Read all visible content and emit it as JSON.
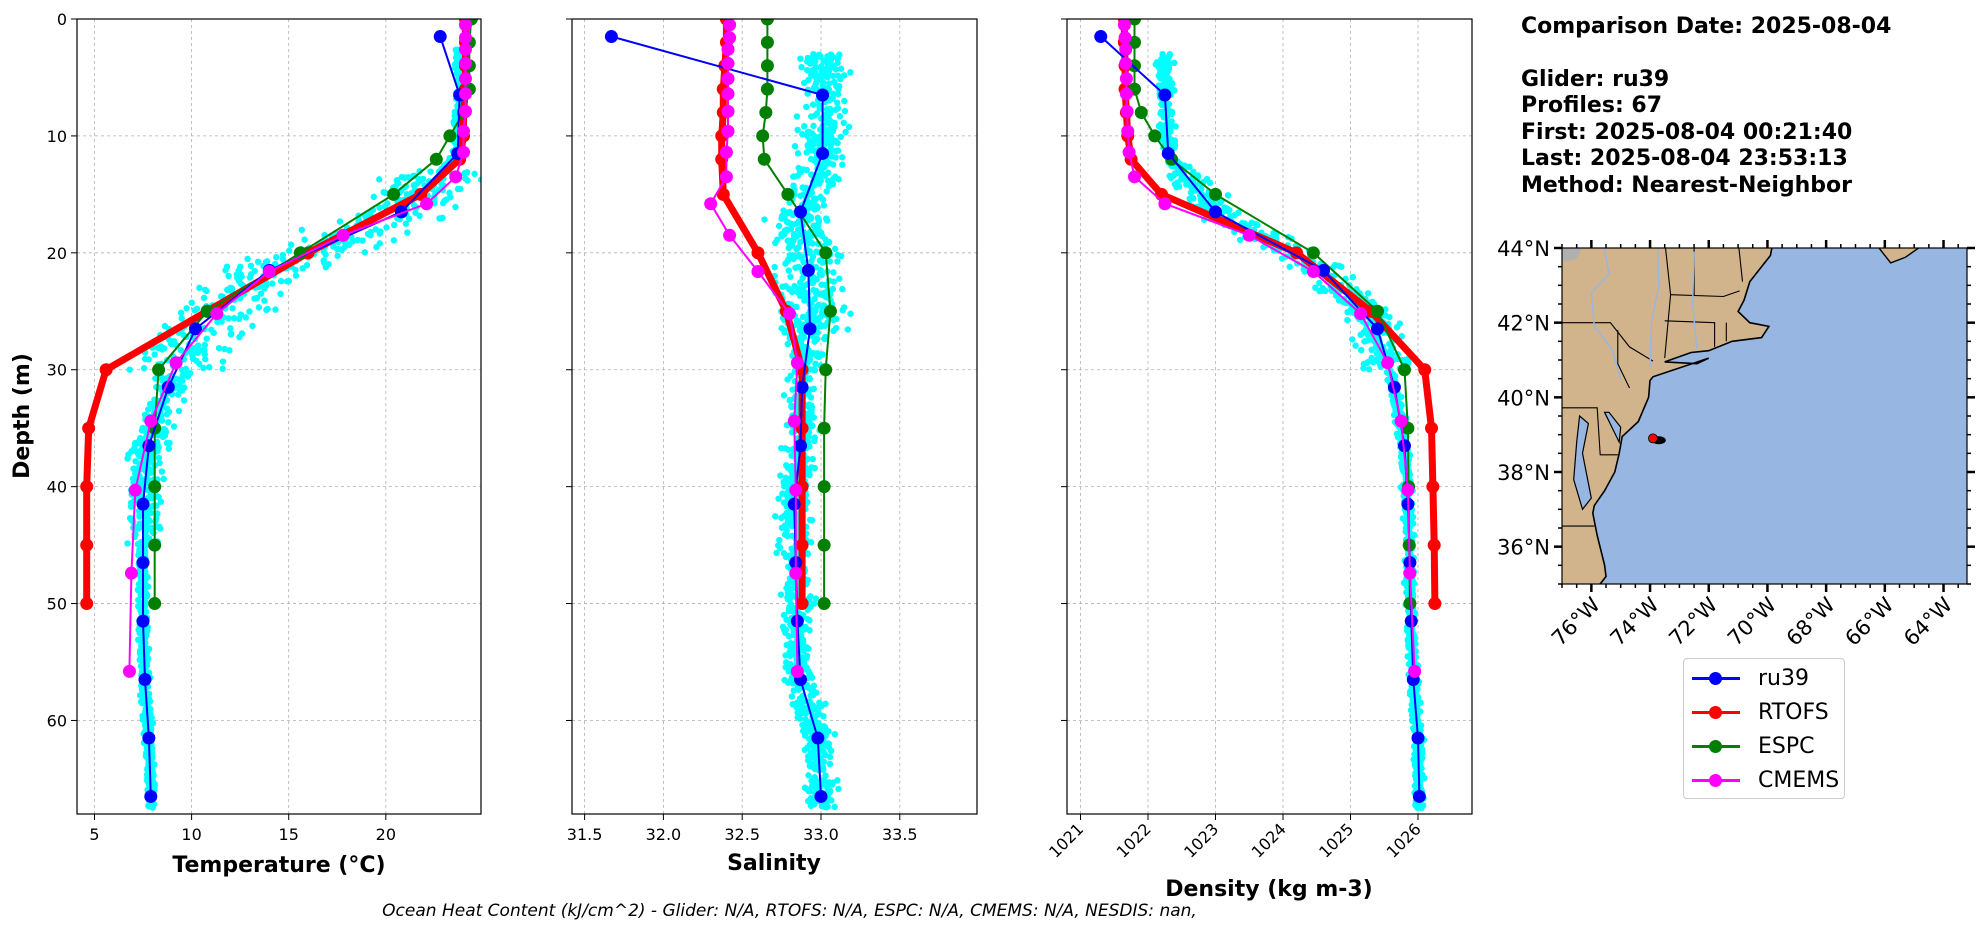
{
  "info": {
    "comparison_date": "Comparison Date: 2025-08-04",
    "glider": "Glider: ru39",
    "profiles": "Profiles: 67",
    "first": "First: 2025-08-04 00:21:40",
    "last": "Last: 2025-08-04 23:53:13",
    "method": "Method: Nearest-Neighbor"
  },
  "footnote": "Ocean Heat Content (kJ/cm^2) - Glider: N/A,  RTOFS: N/A,  ESPC: N/A,  CMEMS: N/A,  NESDIS: nan,",
  "legend": [
    {
      "name": "ru39",
      "color": "#0000ff"
    },
    {
      "name": "RTOFS",
      "color": "#ff0000"
    },
    {
      "name": "ESPC",
      "color": "#008000"
    },
    {
      "name": "CMEMS",
      "color": "#ff00ff"
    }
  ],
  "colors": {
    "glider_scatter": "#00ffff",
    "land": "#d2b48c",
    "ocean": "#97b6e1",
    "lake_river": "#97b6e1"
  },
  "chart_data": [
    {
      "type": "line",
      "title": "",
      "xlabel": "Temperature (°C)",
      "ylabel": "Depth (m)",
      "xlim": [
        4.1,
        24.9
      ],
      "ylim": [
        68,
        0
      ],
      "xticks": [
        5,
        10,
        15,
        20
      ],
      "yticks": [
        0,
        10,
        20,
        30,
        40,
        50,
        60
      ],
      "grid": true,
      "scatter": {
        "name": "glider profiles (all)",
        "color": "#00ffff",
        "note": "67 profiles; surface ~23.5-24.2 °C (0-13 m), thermocline 13-30 m spanning 7-24 °C, bottom ~7-8 °C"
      },
      "series": [
        {
          "name": "ru39",
          "depth": [
            1.5,
            6.5,
            11.5,
            16.5,
            21.5,
            26.5,
            31.5,
            36.5,
            41.5,
            46.5,
            51.5,
            56.5,
            61.5,
            66.5
          ],
          "values": [
            22.8,
            23.8,
            23.7,
            20.8,
            14.0,
            10.2,
            8.8,
            7.8,
            7.5,
            7.5,
            7.5,
            7.6,
            7.8,
            7.9
          ]
        },
        {
          "name": "RTOFS",
          "depth": [
            0,
            2,
            4,
            6,
            8,
            10,
            12,
            15,
            20,
            25,
            30,
            35,
            40,
            45,
            50
          ],
          "values": [
            24.1,
            24.1,
            24.1,
            24.1,
            24.0,
            24.0,
            23.8,
            21.8,
            16.0,
            10.8,
            5.6,
            4.7,
            4.6,
            4.6,
            4.6
          ]
        },
        {
          "name": "ESPC",
          "depth": [
            0,
            2,
            4,
            6,
            8,
            10,
            12,
            15,
            20,
            25,
            30,
            35,
            40,
            45,
            50
          ],
          "values": [
            24.4,
            24.3,
            24.3,
            24.3,
            24.0,
            23.3,
            22.6,
            20.4,
            15.6,
            10.8,
            8.3,
            8.1,
            8.1,
            8.1,
            8.1
          ]
        },
        {
          "name": "CMEMS",
          "depth": [
            0.5,
            1.6,
            2.6,
            3.8,
            5.1,
            6.4,
            7.9,
            9.6,
            11.4,
            13.5,
            15.8,
            18.5,
            21.6,
            25.2,
            29.4,
            34.4,
            40.3,
            47.4,
            55.8
          ],
          "values": [
            24.1,
            24.1,
            24.1,
            24.1,
            24.1,
            24.1,
            24.1,
            24.0,
            24.0,
            23.6,
            22.1,
            17.8,
            14.0,
            11.3,
            9.2,
            7.9,
            7.1,
            6.9,
            6.8
          ]
        }
      ]
    },
    {
      "type": "line",
      "title": "",
      "xlabel": "Salinity",
      "ylabel": "",
      "xlim": [
        31.42,
        33.99
      ],
      "ylim": [
        68,
        0
      ],
      "xticks": [
        31.5,
        32.0,
        32.5,
        33.0,
        33.5
      ],
      "xtick_labels": [
        "31.5",
        "32.0",
        "32.5",
        "33.0",
        "33.5"
      ],
      "yticks": [
        0,
        10,
        20,
        30,
        40,
        50,
        60
      ],
      "grid": true,
      "scatter": {
        "name": "glider profiles (all)",
        "color": "#00ffff",
        "note": "upper 3-17 m ~32.6-33.3; 17-28 m ~32.5-33.7; below 28 m ~32.6-33.1"
      },
      "series": [
        {
          "name": "ru39",
          "depth": [
            1.5,
            6.5,
            11.5,
            16.5,
            21.5,
            26.5,
            31.5,
            36.5,
            41.5,
            46.5,
            51.5,
            56.5,
            61.5,
            66.5
          ],
          "values": [
            31.67,
            33.01,
            33.01,
            32.87,
            32.92,
            32.93,
            32.88,
            32.87,
            32.83,
            32.84,
            32.85,
            32.87,
            32.98,
            33.0
          ]
        },
        {
          "name": "RTOFS",
          "depth": [
            0,
            2,
            4,
            6,
            8,
            10,
            12,
            15,
            20,
            25,
            30,
            35,
            40,
            45,
            50
          ],
          "values": [
            32.4,
            32.4,
            32.39,
            32.38,
            32.38,
            32.37,
            32.37,
            32.38,
            32.6,
            32.78,
            32.88,
            32.88,
            32.88,
            32.88,
            32.88
          ]
        },
        {
          "name": "ESPC",
          "depth": [
            0,
            2,
            4,
            6,
            8,
            10,
            12,
            15,
            20,
            25,
            30,
            35,
            40,
            45,
            50
          ],
          "values": [
            32.66,
            32.66,
            32.66,
            32.66,
            32.65,
            32.63,
            32.64,
            32.79,
            33.03,
            33.06,
            33.03,
            33.02,
            33.02,
            33.02,
            33.02
          ]
        },
        {
          "name": "CMEMS",
          "depth": [
            0.5,
            1.6,
            2.6,
            3.8,
            5.1,
            6.4,
            7.9,
            9.6,
            11.4,
            13.5,
            15.8,
            18.5,
            21.6,
            25.2,
            29.4,
            34.4,
            40.3,
            47.4,
            55.8
          ],
          "values": [
            32.42,
            32.42,
            32.41,
            32.41,
            32.41,
            32.41,
            32.41,
            32.41,
            32.4,
            32.4,
            32.3,
            32.42,
            32.6,
            32.8,
            32.85,
            32.83,
            32.84,
            32.84,
            32.85
          ]
        }
      ]
    },
    {
      "type": "line",
      "title": "",
      "xlabel": "Density (kg m-3)",
      "ylabel": "",
      "xlim": [
        1020.8,
        1026.8
      ],
      "ylim": [
        68,
        0
      ],
      "xticks": [
        1021,
        1022,
        1023,
        1024,
        1025,
        1026
      ],
      "yticks": [
        0,
        10,
        20,
        30,
        40,
        50,
        60
      ],
      "grid": true,
      "scatter": {
        "name": "glider profiles (all)",
        "color": "#00ffff",
        "note": "upper 3-13 m ~1022.0-1022.5; thermocline 13-30 m ~1021.8-1025.8; below 30 m ~1025.6-1026.1"
      },
      "series": [
        {
          "name": "ru39",
          "depth": [
            1.5,
            6.5,
            11.5,
            16.5,
            21.5,
            26.5,
            31.5,
            36.5,
            41.5,
            46.5,
            51.5,
            56.5,
            61.5,
            66.5
          ],
          "values": [
            1021.3,
            1022.25,
            1022.3,
            1023.0,
            1024.6,
            1025.4,
            1025.65,
            1025.8,
            1025.85,
            1025.88,
            1025.9,
            1025.93,
            1026.0,
            1026.02
          ]
        },
        {
          "name": "RTOFS",
          "depth": [
            0,
            2,
            4,
            6,
            8,
            10,
            12,
            15,
            20,
            25,
            30,
            35,
            40,
            45,
            50
          ],
          "values": [
            1021.65,
            1021.65,
            1021.66,
            1021.66,
            1021.68,
            1021.7,
            1021.75,
            1022.2,
            1024.2,
            1025.3,
            1026.1,
            1026.2,
            1026.22,
            1026.24,
            1026.25
          ]
        },
        {
          "name": "ESPC",
          "depth": [
            0,
            2,
            4,
            6,
            8,
            10,
            12,
            15,
            20,
            25,
            30,
            35,
            40,
            45,
            50
          ],
          "values": [
            1021.8,
            1021.8,
            1021.8,
            1021.8,
            1021.9,
            1022.1,
            1022.35,
            1023.0,
            1024.45,
            1025.4,
            1025.8,
            1025.85,
            1025.86,
            1025.87,
            1025.88
          ]
        },
        {
          "name": "CMEMS",
          "depth": [
            0.5,
            1.6,
            2.6,
            3.8,
            5.1,
            6.4,
            7.9,
            9.6,
            11.4,
            13.5,
            15.8,
            18.5,
            21.6,
            25.2,
            29.4,
            34.4,
            40.3,
            47.4,
            55.8
          ],
          "values": [
            1021.65,
            1021.66,
            1021.67,
            1021.67,
            1021.68,
            1021.68,
            1021.69,
            1021.7,
            1021.72,
            1021.8,
            1022.25,
            1023.5,
            1024.45,
            1025.15,
            1025.55,
            1025.75,
            1025.85,
            1025.88,
            1025.95
          ]
        }
      ]
    },
    {
      "type": "scatter",
      "title": "",
      "xlabel": "",
      "ylabel": "",
      "map": true,
      "xlim": [
        -77.0,
        -63.2
      ],
      "ylim": [
        35.0,
        44.0
      ],
      "xticks": [
        -76,
        -74,
        -72,
        -70,
        -68,
        -66,
        -64
      ],
      "xtick_labels": [
        "76°W",
        "74°W",
        "72°W",
        "70°W",
        "68°W",
        "66°W",
        "64°W"
      ],
      "yticks": [
        36,
        38,
        40,
        42,
        44
      ],
      "ytick_labels": [
        "36°N",
        "38°N",
        "40°N",
        "42°N",
        "44°N"
      ],
      "points": [
        {
          "name": "glider track",
          "lon": -73.7,
          "lat": 38.85,
          "color": "#000000"
        },
        {
          "name": "glider start",
          "lon": -73.9,
          "lat": 38.9,
          "color": "#ff0000"
        }
      ]
    }
  ]
}
